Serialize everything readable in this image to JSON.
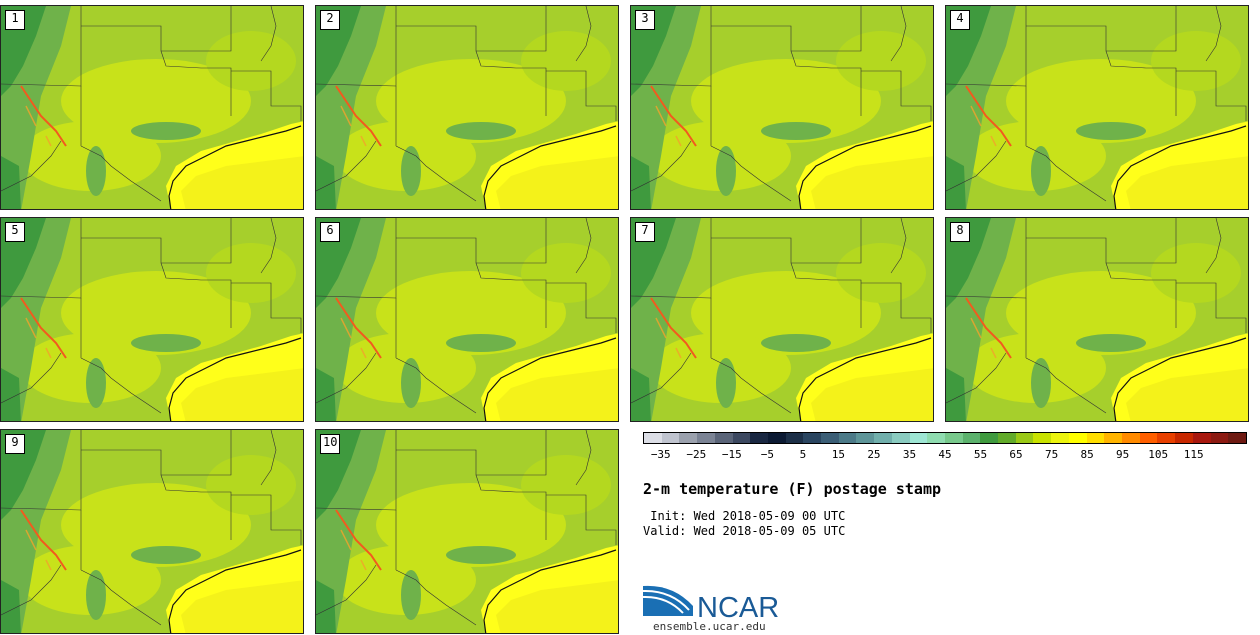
{
  "panels": [
    {
      "label": "1"
    },
    {
      "label": "2"
    },
    {
      "label": "3"
    },
    {
      "label": "4"
    },
    {
      "label": "5"
    },
    {
      "label": "6"
    },
    {
      "label": "7"
    },
    {
      "label": "8"
    },
    {
      "label": "9"
    },
    {
      "label": "10"
    }
  ],
  "colorbar": {
    "colors": [
      "#dcdee6",
      "#c0c4cf",
      "#9ba1ad",
      "#7b8394",
      "#5a6478",
      "#3c4860",
      "#1a2842",
      "#0c1a33",
      "#1c2f47",
      "#2a4560",
      "#3b5e76",
      "#4c7a88",
      "#5e9599",
      "#71afac",
      "#8acbc0",
      "#9ee6d4",
      "#8fdcb0",
      "#78c98c",
      "#5cb26d",
      "#3f9a3e",
      "#62ab2a",
      "#9ac916",
      "#c9e200",
      "#ecf40e",
      "#ffff00",
      "#ffde00",
      "#ffb400",
      "#ff8a00",
      "#ff5f00",
      "#e84000",
      "#c82800",
      "#a8180f",
      "#8c1a12",
      "#6e1a12"
    ],
    "ticks": [
      "−35",
      "−25",
      "−15",
      "−5",
      "5",
      "15",
      "25",
      "35",
      "45",
      "55",
      "65",
      "75",
      "85",
      "95",
      "105",
      "115"
    ]
  },
  "title": "2-m temperature (F) postage stamp",
  "init": " Init: Wed 2018-05-09 00 UTC",
  "valid": "Valid: Wed 2018-05-09 05 UTC",
  "logo_text": "NCAR",
  "url": "ensemble.ucar.edu"
}
